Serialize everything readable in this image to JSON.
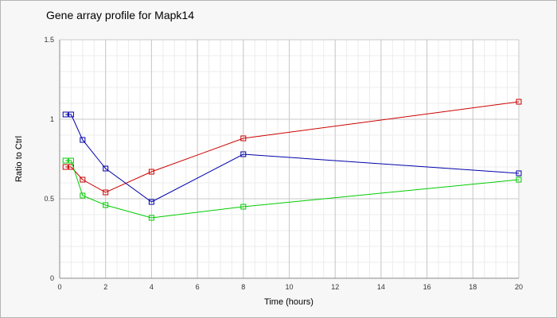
{
  "chart_data": {
    "type": "line",
    "title": "Gene array profile for Mapk14",
    "xlabel": "Time (hours)",
    "ylabel": "Ratio to Ctrl",
    "xlim": [
      0,
      20
    ],
    "ylim": [
      0,
      1.5
    ],
    "x_ticks": [
      "0",
      "2",
      "4",
      "6",
      "8",
      "10",
      "12",
      "14",
      "16",
      "18",
      "20"
    ],
    "y_ticks": [
      "0",
      "0.5",
      "1",
      "1.5"
    ],
    "grid": true,
    "series": [
      {
        "color": "#cc0000",
        "x": [
          0.25,
          0.5,
          1,
          2,
          4,
          8,
          20
        ],
        "y": [
          0.7,
          0.7,
          0.62,
          0.54,
          0.67,
          0.88,
          1.11
        ]
      },
      {
        "color": "#0000aa",
        "x": [
          0.25,
          0.5,
          1,
          2,
          4,
          8,
          20
        ],
        "y": [
          1.03,
          1.03,
          0.87,
          0.69,
          0.48,
          0.78,
          0.66
        ]
      },
      {
        "color": "#00cc00",
        "x": [
          0.25,
          0.5,
          1,
          2,
          4,
          8,
          20
        ],
        "y": [
          0.74,
          0.74,
          0.52,
          0.46,
          0.38,
          0.45,
          0.62
        ]
      }
    ]
  }
}
